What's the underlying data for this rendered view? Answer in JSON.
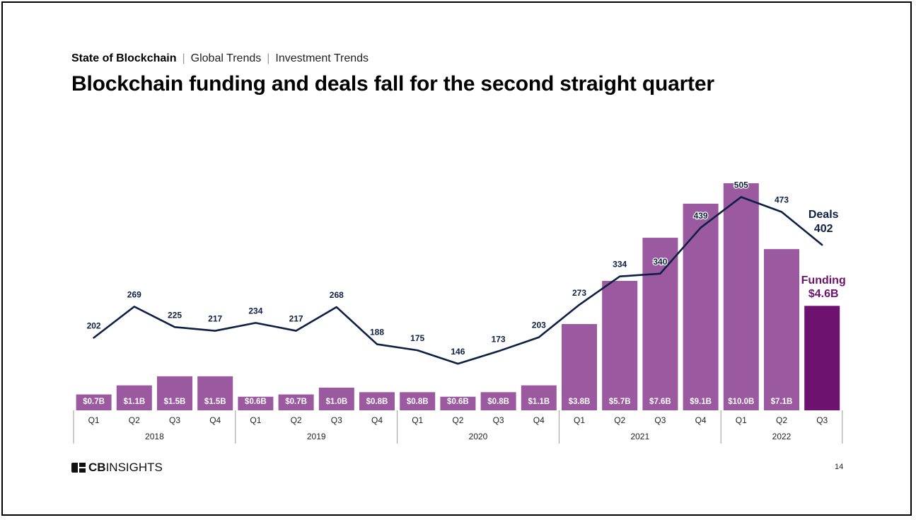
{
  "breadcrumb": {
    "section": "State of Blockchain",
    "items": [
      "Global Trends",
      "Investment Trends"
    ]
  },
  "title": "Blockchain funding and deals fall for the second straight quarter",
  "footer": {
    "brand_bold": "CB",
    "brand_light": "INSIGHTS",
    "page_number": "14"
  },
  "colors": {
    "bar": "#9b59a0",
    "bar_highlight": "#6e1270",
    "line": "#0d1f45",
    "funding_label": "#6e1270",
    "deals_label": "#0d1f45"
  },
  "chart_data": {
    "type": "bar+line",
    "quarters": [
      "Q1",
      "Q2",
      "Q3",
      "Q4",
      "Q1",
      "Q2",
      "Q3",
      "Q4",
      "Q1",
      "Q2",
      "Q3",
      "Q4",
      "Q1",
      "Q2",
      "Q3",
      "Q4",
      "Q1",
      "Q2",
      "Q3"
    ],
    "years": [
      {
        "label": "2018",
        "quarters": 4
      },
      {
        "label": "2019",
        "quarters": 4
      },
      {
        "label": "2020",
        "quarters": 4
      },
      {
        "label": "2021",
        "quarters": 4
      },
      {
        "label": "2022",
        "quarters": 3
      }
    ],
    "series": [
      {
        "name": "Funding",
        "type": "bar",
        "unit": "$B",
        "values": [
          0.7,
          1.1,
          1.5,
          1.5,
          0.6,
          0.7,
          1.0,
          0.8,
          0.8,
          0.6,
          0.8,
          1.1,
          3.8,
          5.7,
          7.6,
          9.1,
          10.0,
          7.1,
          4.6
        ],
        "labels": [
          "$0.7B",
          "$1.1B",
          "$1.5B",
          "$1.5B",
          "$0.6B",
          "$0.7B",
          "$1.0B",
          "$0.8B",
          "$0.8B",
          "$0.6B",
          "$0.8B",
          "$1.1B",
          "$3.8B",
          "$5.7B",
          "$7.6B",
          "$9.1B",
          "$10.0B",
          "$7.1B",
          ""
        ]
      },
      {
        "name": "Deals",
        "type": "line",
        "values": [
          202,
          269,
          225,
          217,
          234,
          217,
          268,
          188,
          175,
          146,
          173,
          203,
          273,
          334,
          340,
          439,
          505,
          473,
          402
        ],
        "labels": [
          "202",
          "269",
          "225",
          "217",
          "234",
          "217",
          "268",
          "188",
          "175",
          "146",
          "173",
          "203",
          "273",
          "334",
          "340",
          "439",
          "505",
          "473",
          ""
        ]
      }
    ],
    "end_labels": {
      "deals_name": "Deals",
      "deals_value": "402",
      "funding_name": "Funding",
      "funding_value": "$4.6B"
    }
  }
}
